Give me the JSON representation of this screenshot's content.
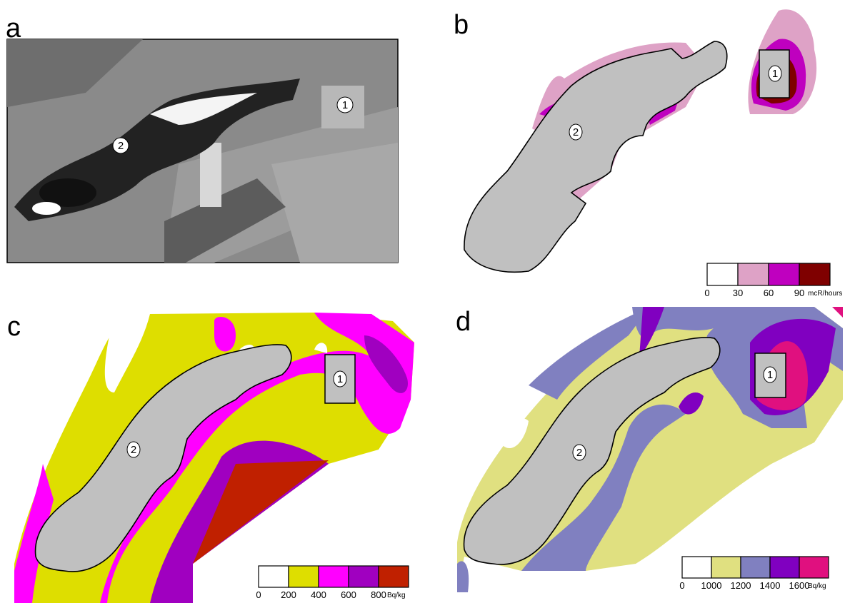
{
  "panels": [
    {
      "label": "a",
      "markers": [
        1,
        2
      ]
    },
    {
      "label": "b",
      "markers": [
        1,
        2
      ],
      "legend": {
        "colors": [
          "#ffffff",
          "#dea2c6",
          "#bf00bf",
          "#7f0000"
        ],
        "ticks": [
          0,
          30,
          60,
          90
        ],
        "unit": "mcR/hours"
      }
    },
    {
      "label": "c",
      "markers": [
        1,
        2
      ],
      "legend": {
        "colors": [
          "#ffffff",
          "#dede00",
          "#ff00ff",
          "#a000c0",
          "#c02000"
        ],
        "ticks": [
          0,
          200,
          400,
          600,
          800
        ],
        "unit": "Bq/kg"
      }
    },
    {
      "label": "d",
      "markers": [
        1,
        2
      ],
      "legend": {
        "colors": [
          "#ffffff",
          "#e0e080",
          "#8080c0",
          "#8000c0",
          "#e0107f"
        ],
        "ticks": [
          0,
          1000,
          1200,
          1400,
          1600
        ],
        "unit": "Bq/kg"
      }
    }
  ]
}
